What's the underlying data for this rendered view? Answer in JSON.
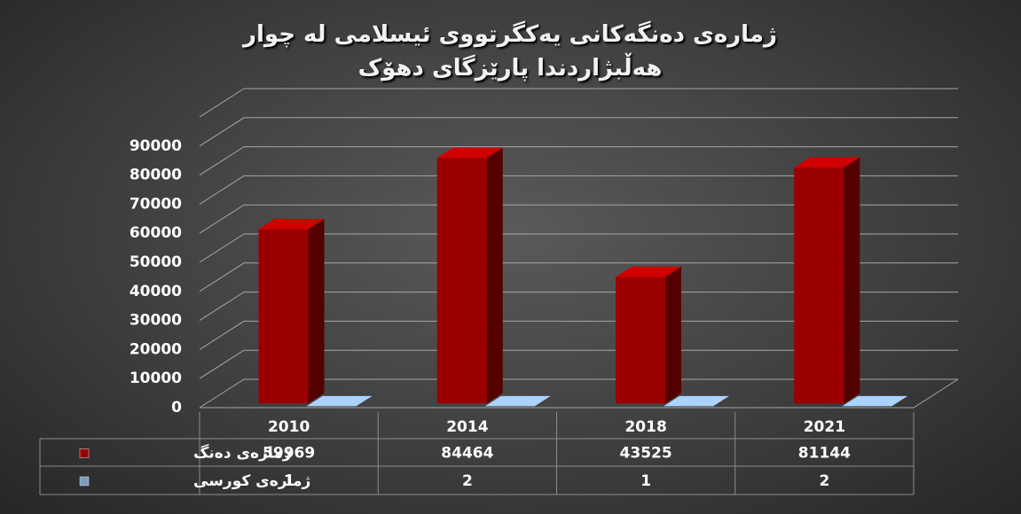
{
  "chart_data": {
    "type": "bar3d",
    "title": "ژمارەی دەنگەکانی یەکگرتووی ئیسلامی لە چوار هەڵبژاردندا پارێزگای دهۆک",
    "categories": [
      "2010",
      "2014",
      "2018",
      "2021"
    ],
    "series": [
      {
        "name": "ژمارەی دەنگ",
        "color": "#9b0000",
        "values": [
          59969,
          84464,
          43525,
          81144
        ]
      },
      {
        "name": "ژمارەی کورسی",
        "color": "#7f9cc0",
        "values": [
          1,
          2,
          1,
          2
        ]
      }
    ],
    "ylim": [
      0,
      100000
    ],
    "yticks": [
      0,
      10000,
      20000,
      30000,
      40000,
      50000,
      60000,
      70000,
      80000,
      90000
    ],
    "grid": true,
    "data_table": true
  }
}
